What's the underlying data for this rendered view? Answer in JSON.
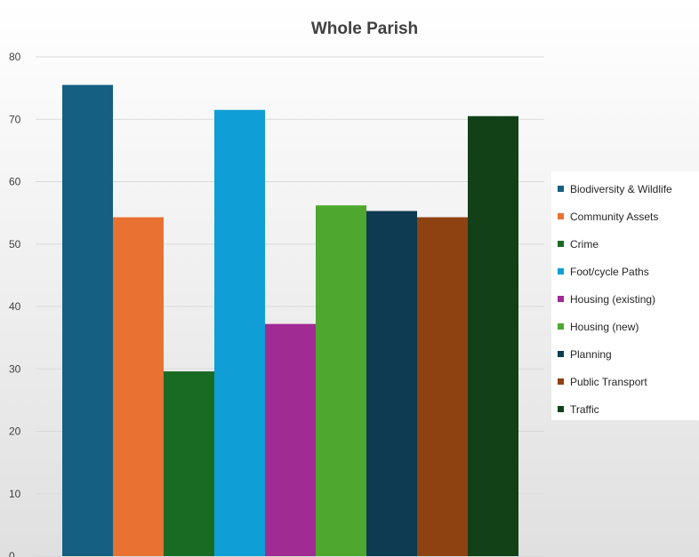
{
  "chart_data": {
    "type": "bar",
    "title": "Whole Parish",
    "xlabel": "",
    "ylabel": "",
    "ylim": [
      0,
      80
    ],
    "yticks": [
      0,
      10,
      20,
      30,
      40,
      50,
      60,
      70,
      80
    ],
    "grid": true,
    "legend_position": "right",
    "series": [
      {
        "name": "Biodiversity & Wildlife",
        "value": 75.5,
        "color": "#156082"
      },
      {
        "name": "Community Assets",
        "value": 54.3,
        "color": "#E97132"
      },
      {
        "name": "Crime",
        "value": 29.6,
        "color": "#196B24"
      },
      {
        "name": "Foot/cycle Paths",
        "value": 71.5,
        "color": "#0F9ED5"
      },
      {
        "name": "Housing (existing)",
        "value": 37.2,
        "color": "#A02B93"
      },
      {
        "name": "Housing (new)",
        "value": 56.2,
        "color": "#4EA72E"
      },
      {
        "name": "Planning",
        "value": 55.3,
        "color": "#0E3A52"
      },
      {
        "name": "Public Transport",
        "value": 54.3,
        "color": "#8E4212"
      },
      {
        "name": "Traffic",
        "value": 70.5,
        "color": "#124118"
      }
    ]
  }
}
